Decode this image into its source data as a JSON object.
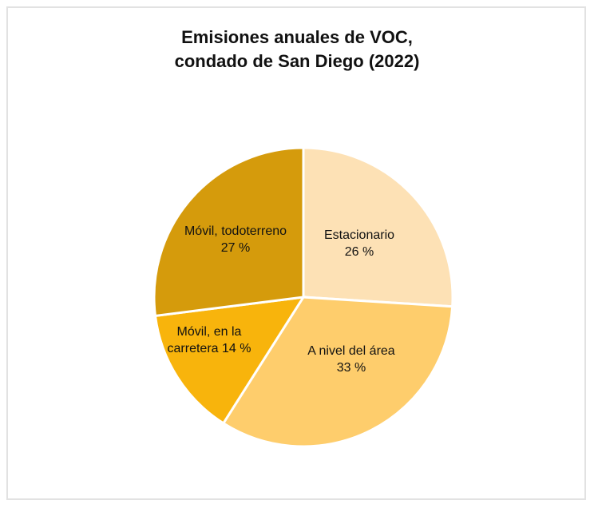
{
  "chart_data": {
    "type": "pie",
    "title": "Emisiones anuales de VOC,",
    "subtitle": "condado de San Diego (2022)",
    "categories": [
      "Estacionario",
      "A nivel del área",
      "Móvil, en la carretera",
      "Móvil, todoterreno"
    ],
    "values": [
      26,
      33,
      14,
      27
    ],
    "value_labels": [
      "26 %",
      "33 %",
      "14 %",
      "27 %"
    ],
    "colors": [
      "#fde1b5",
      "#fecd6c",
      "#f8b40c",
      "#d59b0c"
    ]
  }
}
